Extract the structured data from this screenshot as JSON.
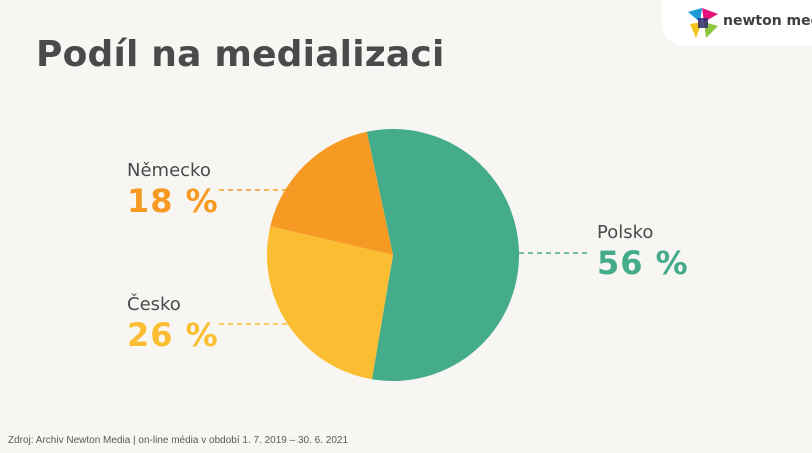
{
  "title": "Podíl na medializaci",
  "logo": {
    "text": "newton media",
    "icon": "newton-media-logo-icon"
  },
  "colors": {
    "background": "#f7f6f2",
    "polsko": "#44ab8b",
    "cesko": "#fbbe32",
    "nemecko": "#f79a24"
  },
  "chart_data": {
    "type": "pie",
    "slices": [
      {
        "label": "Polsko",
        "value": 56,
        "display": "56 %",
        "color": "#44ab8b"
      },
      {
        "label": "Česko",
        "value": 26,
        "display": "26 %",
        "color": "#fbbe32"
      },
      {
        "label": "Německo",
        "value": 18,
        "display": "18 %",
        "color": "#f79a24"
      }
    ],
    "start": "top-slightly-left, clockwise",
    "legend": "none; labels beside slices with dashed leader lines"
  },
  "source": "Zdroj: Archiv Newton Media | on-line média v období 1. 7. 2019 – 30. 6. 2021"
}
